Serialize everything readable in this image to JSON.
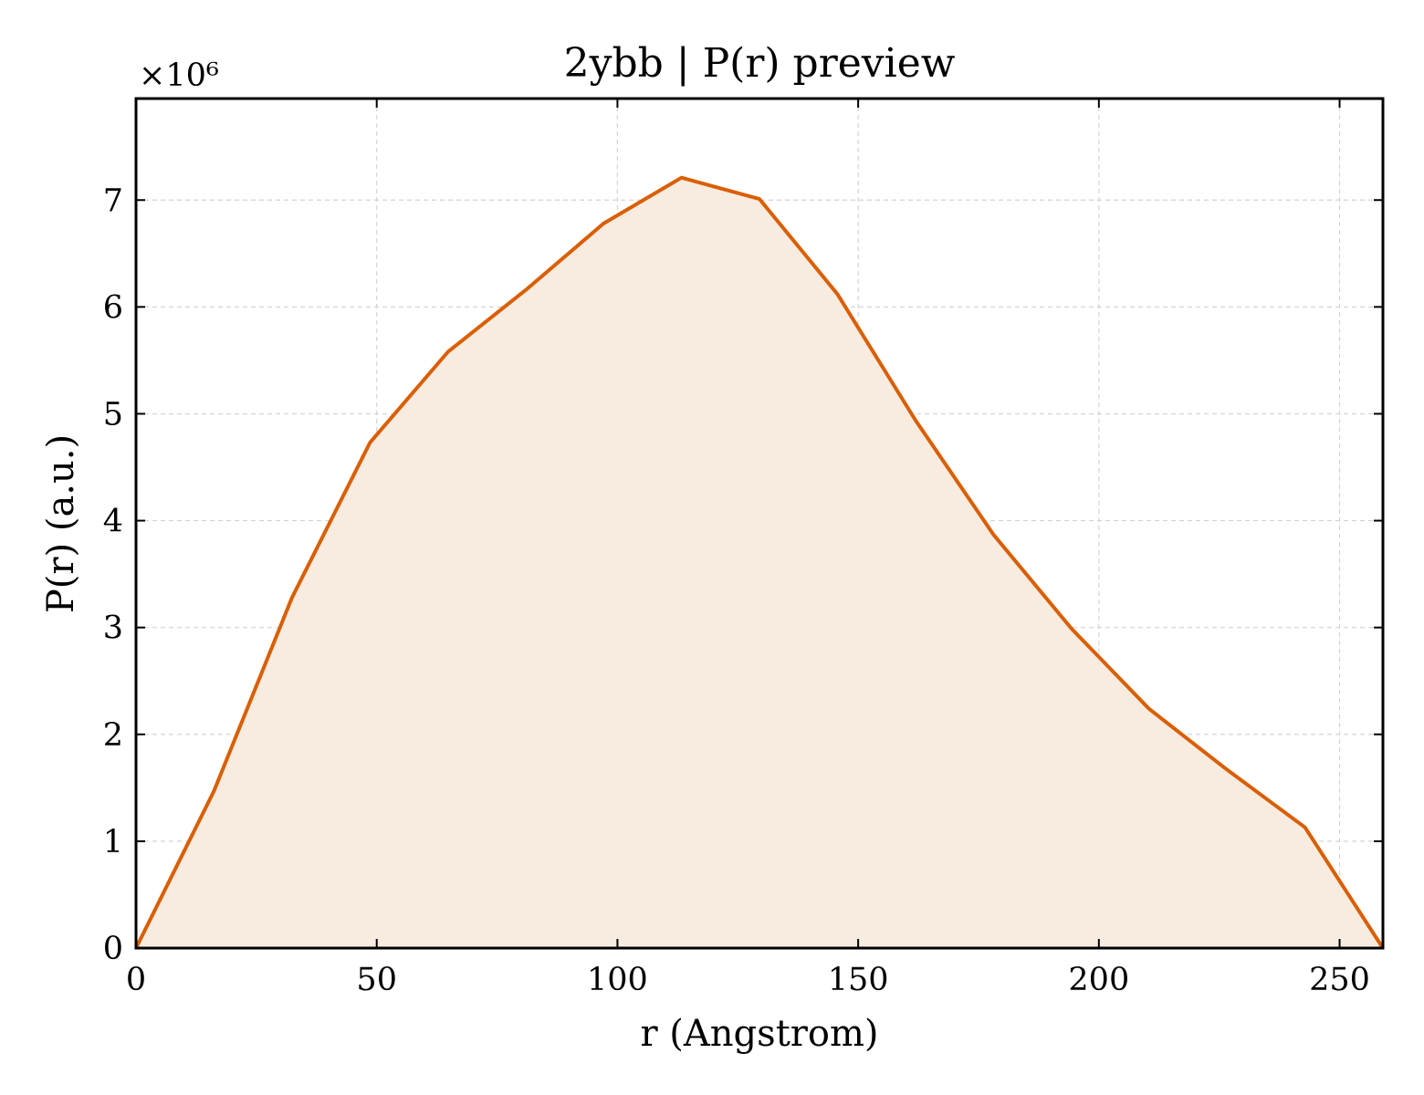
{
  "chart_data": {
    "type": "area",
    "title": "2ybb | P(r) preview",
    "xlabel": "r (Angstrom)",
    "ylabel": "P(r) (a.u.)",
    "y_offset_label": "×10⁶",
    "xlim": [
      0,
      259
    ],
    "ylim": [
      0,
      7.95
    ],
    "xticks": [
      0,
      50,
      100,
      150,
      200,
      250
    ],
    "yticks": [
      0,
      1,
      2,
      3,
      4,
      5,
      6,
      7
    ],
    "grid": true,
    "line_color": "#d95f02",
    "fill_color": "#f8ebe0",
    "series": [
      {
        "x": [
          0,
          16.2,
          32.4,
          48.6,
          64.8,
          81.0,
          97.1,
          113.3,
          129.5,
          145.7,
          161.9,
          178.1,
          194.3,
          210.4,
          226.6,
          242.8,
          259.0
        ],
        "y": [
          0,
          1.47,
          3.28,
          4.73,
          5.58,
          6.16,
          6.78,
          7.21,
          7.01,
          6.12,
          4.94,
          3.87,
          2.99,
          2.24,
          1.67,
          1.13,
          0
        ]
      }
    ]
  }
}
